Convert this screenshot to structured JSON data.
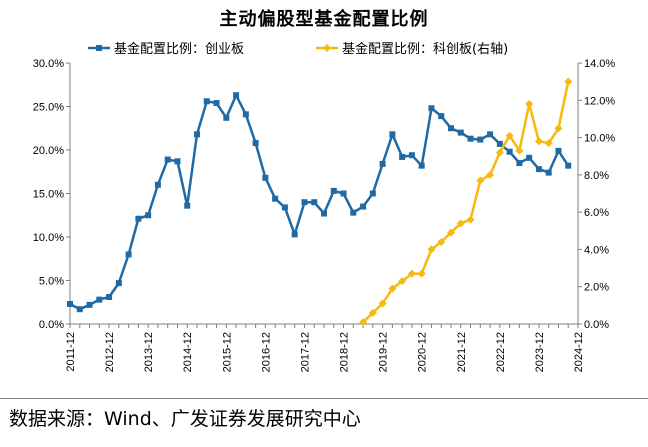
{
  "source_note": "数据来源：Wind、广发证券发展研究中心",
  "chart_data": {
    "type": "line",
    "title": "主动偏股型基金配置比例",
    "x": [
      "2011-12",
      "2012-03",
      "2012-06",
      "2012-09",
      "2012-12",
      "2013-03",
      "2013-06",
      "2013-09",
      "2013-12",
      "2014-03",
      "2014-06",
      "2014-09",
      "2014-12",
      "2015-03",
      "2015-06",
      "2015-09",
      "2015-12",
      "2016-03",
      "2016-06",
      "2016-09",
      "2016-12",
      "2017-03",
      "2017-06",
      "2017-09",
      "2017-12",
      "2018-03",
      "2018-06",
      "2018-09",
      "2018-12",
      "2019-03",
      "2019-06",
      "2019-09",
      "2019-12",
      "2020-03",
      "2020-06",
      "2020-09",
      "2020-12",
      "2021-03",
      "2021-06",
      "2021-09",
      "2021-12",
      "2022-03",
      "2022-06",
      "2022-09",
      "2022-12",
      "2023-03",
      "2023-06",
      "2023-09",
      "2023-12",
      "2024-03",
      "2024-06",
      "2024-09",
      "2024-12"
    ],
    "x_tick_labels": [
      "2011-12",
      "2012-12",
      "2013-12",
      "2014-12",
      "2015-12",
      "2016-12",
      "2017-12",
      "2018-12",
      "2019-12",
      "2020-12",
      "2021-12",
      "2022-12",
      "2023-12",
      "2024-12"
    ],
    "series": [
      {
        "name": "基金配置比例：创业板",
        "axis": "left",
        "color": "#1F6AA5",
        "marker": "square",
        "values": [
          2.3,
          1.7,
          2.2,
          2.8,
          3.1,
          4.7,
          8.0,
          12.1,
          12.5,
          16.0,
          18.9,
          18.7,
          13.6,
          21.8,
          25.6,
          25.4,
          23.7,
          26.3,
          24.1,
          20.8,
          16.8,
          14.4,
          13.4,
          10.3,
          14.0,
          14.0,
          12.7,
          15.3,
          15.0,
          12.8,
          13.5,
          15.0,
          18.4,
          21.8,
          19.2,
          19.4,
          18.2,
          24.8,
          23.9,
          22.5,
          22.0,
          21.3,
          21.2,
          21.8,
          20.7,
          19.8,
          18.5,
          19.1,
          17.8,
          17.4,
          19.9,
          18.2,
          null
        ]
      },
      {
        "name": "基金配置比例：科创板(右轴)",
        "axis": "right",
        "color": "#F5B90F",
        "marker": "diamond",
        "values": [
          null,
          null,
          null,
          null,
          null,
          null,
          null,
          null,
          null,
          null,
          null,
          null,
          null,
          null,
          null,
          null,
          null,
          null,
          null,
          null,
          null,
          null,
          null,
          null,
          null,
          null,
          null,
          null,
          null,
          null,
          0.1,
          0.6,
          1.1,
          1.9,
          2.3,
          2.7,
          2.7,
          4.0,
          4.4,
          4.9,
          5.4,
          5.6,
          7.7,
          8.0,
          9.2,
          10.1,
          9.3,
          11.8,
          9.8,
          9.7,
          10.5,
          13.0,
          null
        ]
      }
    ],
    "y_left": {
      "min": 0,
      "max": 30,
      "ticks": [
        "0.0%",
        "5.0%",
        "10.0%",
        "15.0%",
        "20.0%",
        "25.0%",
        "30.0%"
      ]
    },
    "y_right": {
      "min": 0,
      "max": 14,
      "ticks": [
        "0.0%",
        "2.0%",
        "4.0%",
        "6.0%",
        "8.0%",
        "10.0%",
        "12.0%",
        "14.0%"
      ]
    },
    "legend_position": "top",
    "grid": false
  }
}
